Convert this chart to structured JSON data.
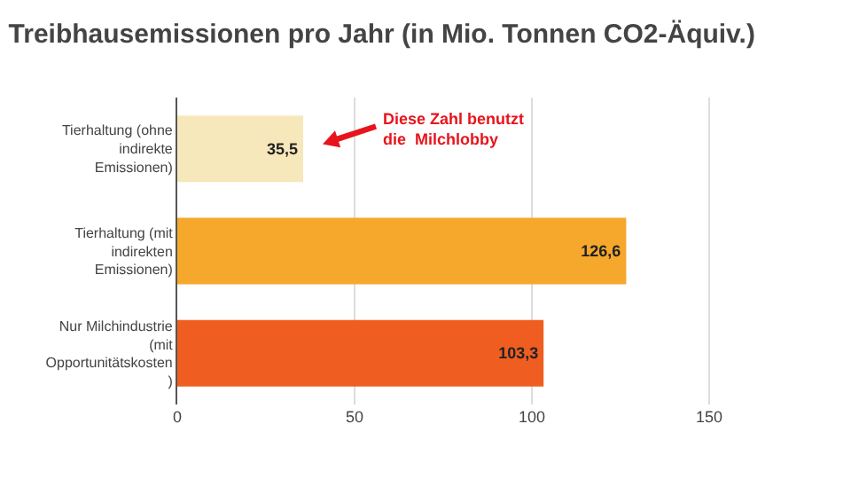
{
  "chart_data": {
    "type": "bar",
    "orientation": "horizontal",
    "title": "Treibhausemissionen pro Jahr (in Mio. Tonnen CO2-Äquiv.)",
    "categories": [
      "Tierhaltung (ohne indirekte Emissionen)",
      "Tierhaltung (mit indirekten Emissionen)",
      "Nur Milchindustrie (mit Opportunitätskosten )"
    ],
    "values": [
      35.5,
      126.6,
      103.3
    ],
    "colors": [
      "#f7e8bb",
      "#f5a82c",
      "#ef5e20"
    ],
    "value_labels": [
      "35,5",
      "126,6",
      "103,3"
    ],
    "xlim": [
      0,
      190
    ],
    "xticks": [
      0,
      50,
      100,
      150
    ],
    "grid": "x",
    "annotations": [
      "Diese Zahl benutzt die  Milchlobby"
    ]
  }
}
